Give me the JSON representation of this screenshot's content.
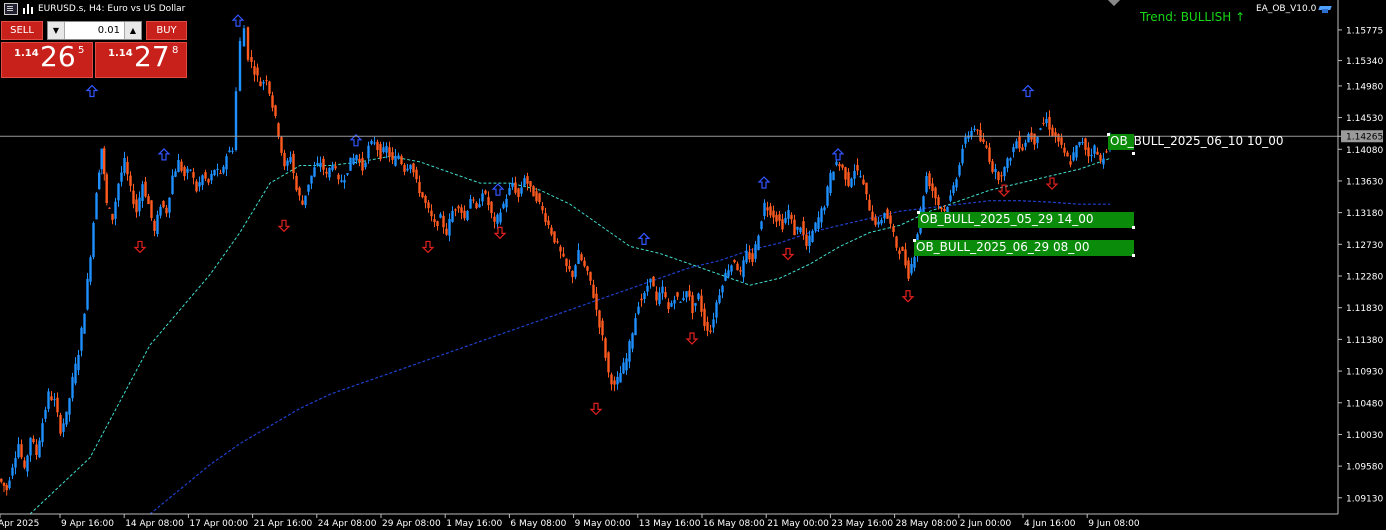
{
  "window": {
    "symbol_title": "EURUSD.s, H4:  Euro vs US Dollar",
    "ea_label": "EA_OB_V10.0",
    "trend_text": "Trend: BULLISH ↑",
    "icons": [
      "chart-window-icon",
      "candles-icon",
      "ea-hat-icon"
    ]
  },
  "trade_panel": {
    "sell_label": "SELL",
    "buy_label": "BUY",
    "lot_value": "0.01",
    "sell_quote": {
      "big": "1.14",
      "pips": "26",
      "frac": "5"
    },
    "buy_quote": {
      "big": "1.14",
      "pips": "27",
      "frac": "8"
    },
    "colors": {
      "button": "#c8211c"
    }
  },
  "order_blocks": [
    {
      "label": "OB_BULL_2025_06_10 10_00"
    },
    {
      "label": "OB_BULL_2025_05_29 14_00"
    },
    {
      "label": "OB_BULL_2025_06_29 08_00"
    }
  ],
  "chart_data": {
    "type": "candlestick",
    "timeframe": "H4",
    "ylim": [
      1.089,
      1.162
    ],
    "price_ticks": [
      "1.15775",
      "1.15340",
      "1.14980",
      "1.14530",
      "1.14265",
      "1.14080",
      "1.13630",
      "1.13180",
      "1.12730",
      "1.12280",
      "1.11830",
      "1.11380",
      "1.10930",
      "1.10480",
      "1.10030",
      "1.09580",
      "1.09130"
    ],
    "current_price": 1.14265,
    "time_labels": [
      "Apr 2025",
      "9 Apr 16:00",
      "14 Apr 08:00",
      "17 Apr 00:00",
      "21 Apr 16:00",
      "24 Apr 08:00",
      "29 Apr 08:00",
      "1 May 16:00",
      "6 May 08:00",
      "9 May 00:00",
      "13 May 16:00",
      "16 May 08:00",
      "21 May 00:00",
      "23 May 16:00",
      "28 May 08:00",
      "2 Jun 00:00",
      "4 Jun 16:00",
      "9 Jun 08:00"
    ],
    "close_path": [
      [
        0,
        1.094
      ],
      [
        8,
        1.0925
      ],
      [
        14,
        1.096
      ],
      [
        20,
        1.099
      ],
      [
        26,
        1.095
      ],
      [
        32,
        1.1
      ],
      [
        38,
        1.0975
      ],
      [
        44,
        1.102
      ],
      [
        50,
        1.106
      ],
      [
        56,
        1.105
      ],
      [
        62,
        1.101
      ],
      [
        68,
        1.103
      ],
      [
        74,
        1.108
      ],
      [
        80,
        1.112
      ],
      [
        86,
        1.118
      ],
      [
        92,
        1.126
      ],
      [
        98,
        1.135
      ],
      [
        103,
        1.141
      ],
      [
        108,
        1.133
      ],
      [
        114,
        1.131
      ],
      [
        120,
        1.136
      ],
      [
        126,
        1.139
      ],
      [
        132,
        1.135
      ],
      [
        138,
        1.132
      ],
      [
        144,
        1.136
      ],
      [
        150,
        1.133
      ],
      [
        156,
        1.129
      ],
      [
        162,
        1.133
      ],
      [
        168,
        1.132
      ],
      [
        174,
        1.137
      ],
      [
        180,
        1.139
      ],
      [
        186,
        1.137
      ],
      [
        192,
        1.138
      ],
      [
        198,
        1.135
      ],
      [
        204,
        1.137
      ],
      [
        210,
        1.136
      ],
      [
        216,
        1.138
      ],
      [
        222,
        1.137
      ],
      [
        228,
        1.14
      ],
      [
        234,
        1.141
      ],
      [
        238,
        1.149
      ],
      [
        242,
        1.156
      ],
      [
        246,
        1.158
      ],
      [
        250,
        1.154
      ],
      [
        256,
        1.152
      ],
      [
        262,
        1.15
      ],
      [
        268,
        1.151
      ],
      [
        274,
        1.147
      ],
      [
        280,
        1.143
      ],
      [
        286,
        1.138
      ],
      [
        292,
        1.14
      ],
      [
        298,
        1.135
      ],
      [
        304,
        1.133
      ],
      [
        310,
        1.136
      ],
      [
        316,
        1.138
      ],
      [
        322,
        1.139
      ],
      [
        328,
        1.137
      ],
      [
        334,
        1.139
      ],
      [
        340,
        1.136
      ],
      [
        346,
        1.137
      ],
      [
        352,
        1.139
      ],
      [
        358,
        1.14
      ],
      [
        364,
        1.138
      ],
      [
        370,
        1.141
      ],
      [
        376,
        1.142
      ],
      [
        382,
        1.14
      ],
      [
        388,
        1.141
      ],
      [
        394,
        1.139
      ],
      [
        400,
        1.14
      ],
      [
        406,
        1.138
      ],
      [
        412,
        1.139
      ],
      [
        418,
        1.136
      ],
      [
        424,
        1.134
      ],
      [
        430,
        1.132
      ],
      [
        436,
        1.13
      ],
      [
        442,
        1.131
      ],
      [
        448,
        1.129
      ],
      [
        454,
        1.132
      ],
      [
        460,
        1.133
      ],
      [
        466,
        1.131
      ],
      [
        472,
        1.134
      ],
      [
        478,
        1.132
      ],
      [
        484,
        1.135
      ],
      [
        490,
        1.133
      ],
      [
        496,
        1.13
      ],
      [
        502,
        1.132
      ],
      [
        508,
        1.134
      ],
      [
        514,
        1.136
      ],
      [
        520,
        1.134
      ],
      [
        526,
        1.137
      ],
      [
        532,
        1.135
      ],
      [
        538,
        1.134
      ],
      [
        544,
        1.132
      ],
      [
        550,
        1.13
      ],
      [
        556,
        1.128
      ],
      [
        562,
        1.126
      ],
      [
        568,
        1.124
      ],
      [
        574,
        1.123
      ],
      [
        580,
        1.126
      ],
      [
        586,
        1.124
      ],
      [
        592,
        1.122
      ],
      [
        598,
        1.118
      ],
      [
        604,
        1.114
      ],
      [
        610,
        1.109
      ],
      [
        616,
        1.107
      ],
      [
        622,
        1.109
      ],
      [
        628,
        1.111
      ],
      [
        634,
        1.115
      ],
      [
        640,
        1.119
      ],
      [
        646,
        1.12
      ],
      [
        652,
        1.123
      ],
      [
        658,
        1.119
      ],
      [
        664,
        1.121
      ],
      [
        670,
        1.118
      ],
      [
        676,
        1.12
      ],
      [
        682,
        1.119
      ],
      [
        688,
        1.121
      ],
      [
        694,
        1.118
      ],
      [
        700,
        1.12
      ],
      [
        706,
        1.116
      ],
      [
        712,
        1.115
      ],
      [
        718,
        1.119
      ],
      [
        724,
        1.122
      ],
      [
        730,
        1.124
      ],
      [
        736,
        1.125
      ],
      [
        742,
        1.123
      ],
      [
        748,
        1.126
      ],
      [
        754,
        1.125
      ],
      [
        760,
        1.129
      ],
      [
        766,
        1.133
      ],
      [
        772,
        1.132
      ],
      [
        778,
        1.131
      ],
      [
        784,
        1.13
      ],
      [
        790,
        1.132
      ],
      [
        796,
        1.129
      ],
      [
        802,
        1.13
      ],
      [
        808,
        1.127
      ],
      [
        814,
        1.129
      ],
      [
        820,
        1.131
      ],
      [
        826,
        1.133
      ],
      [
        832,
        1.137
      ],
      [
        838,
        1.139
      ],
      [
        844,
        1.138
      ],
      [
        850,
        1.136
      ],
      [
        856,
        1.138
      ],
      [
        862,
        1.137
      ],
      [
        868,
        1.134
      ],
      [
        874,
        1.131
      ],
      [
        880,
        1.13
      ],
      [
        886,
        1.132
      ],
      [
        892,
        1.13
      ],
      [
        898,
        1.127
      ],
      [
        904,
        1.126
      ],
      [
        910,
        1.123
      ],
      [
        916,
        1.126
      ],
      [
        922,
        1.132
      ],
      [
        928,
        1.137
      ],
      [
        934,
        1.135
      ],
      [
        940,
        1.133
      ],
      [
        946,
        1.132
      ],
      [
        952,
        1.134
      ],
      [
        958,
        1.137
      ],
      [
        964,
        1.141
      ],
      [
        970,
        1.143
      ],
      [
        976,
        1.144
      ],
      [
        982,
        1.142
      ],
      [
        988,
        1.141
      ],
      [
        994,
        1.138
      ],
      [
        1000,
        1.137
      ],
      [
        1006,
        1.138
      ],
      [
        1012,
        1.14
      ],
      [
        1018,
        1.142
      ],
      [
        1024,
        1.141
      ],
      [
        1030,
        1.143
      ],
      [
        1036,
        1.142
      ],
      [
        1042,
        1.144
      ],
      [
        1048,
        1.145
      ],
      [
        1054,
        1.143
      ],
      [
        1060,
        1.142
      ],
      [
        1066,
        1.14
      ],
      [
        1072,
        1.139
      ],
      [
        1078,
        1.141
      ],
      [
        1084,
        1.142
      ],
      [
        1090,
        1.14
      ],
      [
        1096,
        1.141
      ],
      [
        1102,
        1.139
      ],
      [
        1108,
        1.141
      ],
      [
        1112,
        1.1425
      ]
    ],
    "ma_fast": [
      [
        30,
        1.089
      ],
      [
        60,
        1.093
      ],
      [
        90,
        1.097
      ],
      [
        120,
        1.105
      ],
      [
        150,
        1.113
      ],
      [
        180,
        1.118
      ],
      [
        210,
        1.123
      ],
      [
        240,
        1.129
      ],
      [
        270,
        1.136
      ],
      [
        300,
        1.1385
      ],
      [
        330,
        1.1385
      ],
      [
        360,
        1.139
      ],
      [
        390,
        1.1398
      ],
      [
        420,
        1.139
      ],
      [
        450,
        1.1375
      ],
      [
        480,
        1.136
      ],
      [
        510,
        1.136
      ],
      [
        540,
        1.135
      ],
      [
        570,
        1.133
      ],
      [
        600,
        1.13
      ],
      [
        630,
        1.127
      ],
      [
        660,
        1.126
      ],
      [
        690,
        1.1245
      ],
      [
        720,
        1.123
      ],
      [
        750,
        1.1215
      ],
      [
        780,
        1.1225
      ],
      [
        810,
        1.1245
      ],
      [
        840,
        1.127
      ],
      [
        870,
        1.129
      ],
      [
        900,
        1.13
      ],
      [
        930,
        1.132
      ],
      [
        960,
        1.1335
      ],
      [
        990,
        1.135
      ],
      [
        1020,
        1.136
      ],
      [
        1050,
        1.137
      ],
      [
        1080,
        1.138
      ],
      [
        1110,
        1.1395
      ]
    ],
    "ma_slow": [
      [
        150,
        1.089
      ],
      [
        180,
        1.0925
      ],
      [
        210,
        1.096
      ],
      [
        240,
        1.099
      ],
      [
        270,
        1.1015
      ],
      [
        300,
        1.104
      ],
      [
        330,
        1.106
      ],
      [
        360,
        1.1075
      ],
      [
        390,
        1.109
      ],
      [
        420,
        1.1105
      ],
      [
        450,
        1.112
      ],
      [
        480,
        1.1135
      ],
      [
        510,
        1.115
      ],
      [
        540,
        1.1165
      ],
      [
        570,
        1.118
      ],
      [
        600,
        1.1195
      ],
      [
        630,
        1.121
      ],
      [
        660,
        1.1225
      ],
      [
        690,
        1.124
      ],
      [
        720,
        1.125
      ],
      [
        750,
        1.1265
      ],
      [
        780,
        1.1275
      ],
      [
        810,
        1.129
      ],
      [
        840,
        1.13
      ],
      [
        870,
        1.131
      ],
      [
        900,
        1.132
      ],
      [
        930,
        1.1325
      ],
      [
        960,
        1.133
      ],
      [
        990,
        1.1335
      ],
      [
        1020,
        1.1335
      ],
      [
        1050,
        1.1333
      ],
      [
        1080,
        1.133
      ],
      [
        1110,
        1.133
      ]
    ],
    "arrows_up": [
      [
        92,
        1.149
      ],
      [
        164,
        1.14
      ],
      [
        238,
        1.159
      ],
      [
        356,
        1.142
      ],
      [
        498,
        1.135
      ],
      [
        644,
        1.128
      ],
      [
        764,
        1.136
      ],
      [
        838,
        1.14
      ],
      [
        1028,
        1.149
      ]
    ],
    "arrows_down": [
      [
        140,
        1.127
      ],
      [
        284,
        1.13
      ],
      [
        428,
        1.127
      ],
      [
        500,
        1.129
      ],
      [
        596,
        1.104
      ],
      [
        692,
        1.114
      ],
      [
        788,
        1.126
      ],
      [
        908,
        1.12
      ],
      [
        1004,
        1.135
      ],
      [
        1052,
        1.136
      ]
    ],
    "colors": {
      "bull": "#1e90ff",
      "bear": "#ff5a1f",
      "ma_fast": "#40e0d0",
      "ma_slow": "#1f3fcc",
      "grid_text": "#ffffff",
      "trend": "#18d818",
      "ob": "#0a8c0a"
    }
  }
}
